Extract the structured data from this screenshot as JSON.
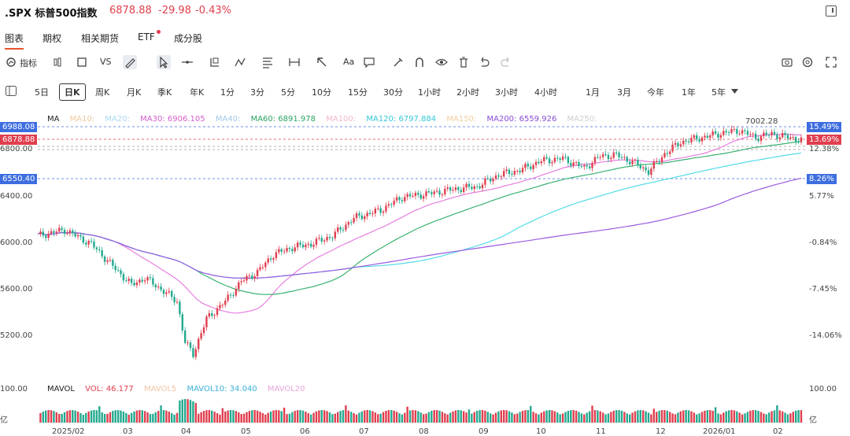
{
  "header": {
    "symbol": ".SPX 标普500指数",
    "price": "6878.88",
    "change": "-29.98",
    "change_pct": "-0.43%"
  },
  "tabs": [
    {
      "label": "图表",
      "active": true
    },
    {
      "label": "期权"
    },
    {
      "label": "相关期货"
    },
    {
      "label": "ETF",
      "badge": true
    },
    {
      "label": "成分股"
    }
  ],
  "toolbar": {
    "indicators": "指标",
    "vs": "VS",
    "text": "Aa"
  },
  "periods": [
    "5日",
    "日K",
    "周K",
    "月K",
    "季K",
    "年K",
    "1分",
    "3分",
    "5分",
    "10分",
    "15分",
    "30分",
    "1小时",
    "2小时",
    "3小时",
    "4小时",
    "1月",
    "3月",
    "今年",
    "1年",
    "5年"
  ],
  "ma_legend": {
    "ma": "MA",
    "ma10": "MA10:",
    "ma20": "MA20:",
    "ma30": "MA30: 6906.105",
    "ma40": "MA40:",
    "ma60": "MA60: 6891.978",
    "ma100": "MA100:",
    "ma120": "MA120: 6797.884",
    "ma150": "MA150:",
    "ma200": "MA200: 6559.926",
    "ma250": "MA250:"
  },
  "price_axis": [
    "6400.00",
    "6000.00",
    "5600.00",
    "5200.00",
    "6800.00"
  ],
  "pct_axis": [
    "12.38%",
    "5.77%",
    "-0.84%",
    "-7.45%",
    "-14.06%"
  ],
  "tags": {
    "high_left": "6988.08",
    "last_left": "6878.88",
    "ma200_left": "6550.40",
    "high_right": "15.49%",
    "last_right": "13.69%",
    "ma200_right": "8.26%",
    "peak": "7002.28"
  },
  "volume": {
    "title": "MAVOL",
    "vol": "VOL: 46.177",
    "mavol5": "MAVOL5",
    "mavol10": "MAVOL10: 34.040",
    "mavol20": "MAVOL20",
    "left_top": "100.00",
    "right_top": "100.00",
    "unit_left": "亿",
    "unit_right": "亿"
  },
  "months": [
    "2025/02",
    "03",
    "04",
    "05",
    "06",
    "07",
    "08",
    "09",
    "10",
    "11",
    "12",
    "2026/01",
    "02"
  ],
  "colors": {
    "up": "#e03e4e",
    "down": "#22a98e",
    "ma30": "#e77ee0",
    "ma60": "#39b26f",
    "ma120": "#52dbe8",
    "ma200": "#9b5be0",
    "accent": "#e6542c",
    "tag_blue": "#3d6ee0"
  }
}
